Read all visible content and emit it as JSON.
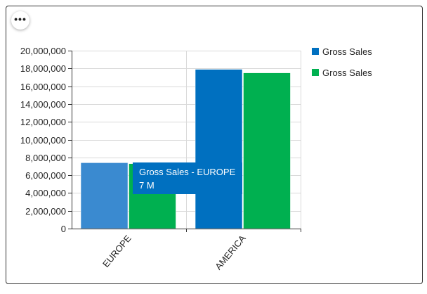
{
  "menu": {
    "icon": "more-horizontal-icon"
  },
  "chart_data": {
    "type": "bar",
    "title": "",
    "xlabel": "",
    "ylabel": "",
    "categories": [
      "EUROPE",
      "AMERICA"
    ],
    "series": [
      {
        "name": "Gross Sales",
        "color": "#0070c0",
        "values": [
          7400000,
          17900000
        ]
      },
      {
        "name": "Gross Sales",
        "color": "#00b050",
        "values": [
          7300000,
          17500000
        ]
      }
    ],
    "ylim": [
      0,
      20000000
    ],
    "yticks": [
      "0",
      "2,000,000",
      "4,000,000",
      "6,000,000",
      "8,000,000",
      "10,000,000",
      "12,000,000",
      "14,000,000",
      "16,000,000",
      "18,000,000",
      "20,000,000"
    ],
    "grid": true,
    "legend_position": "right",
    "highlighted_color": "#3a8ad0",
    "tooltip": {
      "line1": "Gross Sales - EUROPE",
      "line2": "7 M"
    }
  }
}
